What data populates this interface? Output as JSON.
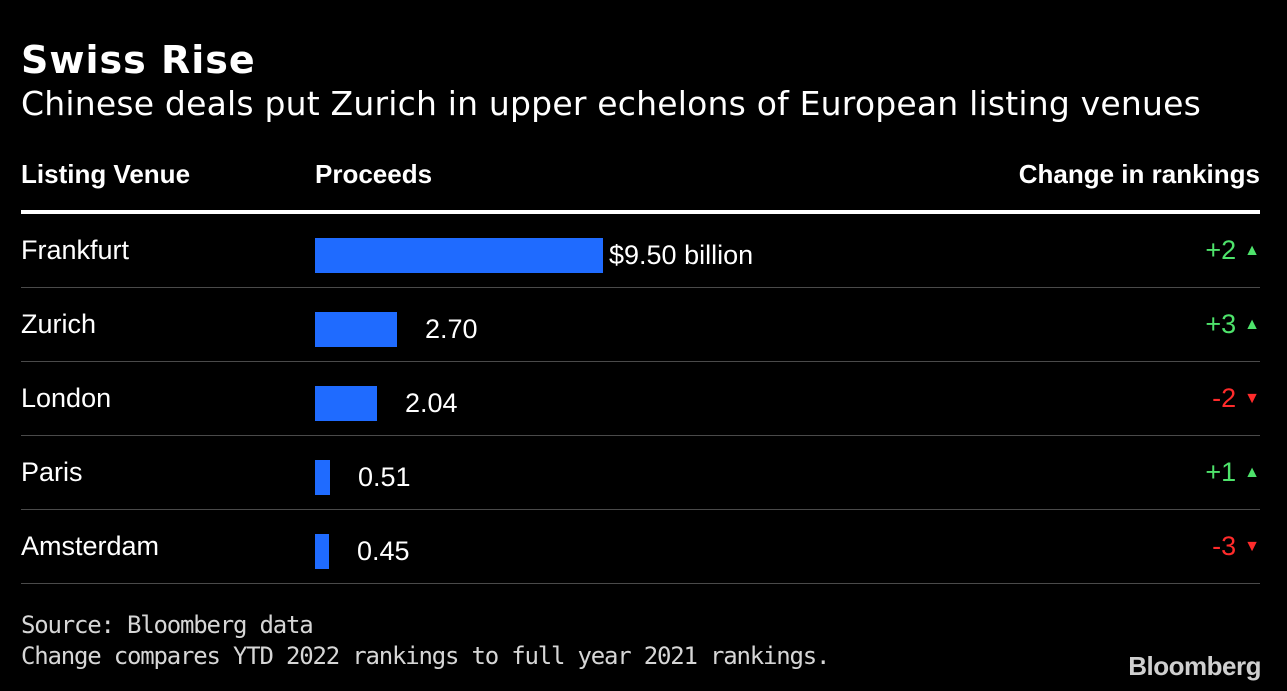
{
  "chart_data": {
    "type": "bar",
    "orientation": "horizontal",
    "title": "Swiss Rise",
    "subtitle": "Chinese deals put Zurich in upper echelons of European listing venues",
    "columns": [
      "Listing Venue",
      "Proceeds",
      "Change in rankings"
    ],
    "categories": [
      "Frankfurt",
      "Zurich",
      "London",
      "Paris",
      "Amsterdam"
    ],
    "values": [
      9.5,
      2.7,
      2.04,
      0.51,
      0.45
    ],
    "value_labels": [
      "$9.50 billion",
      "2.70",
      "2.04",
      "0.51",
      "0.45"
    ],
    "unit": "billion USD",
    "xlim": [
      0,
      9.5
    ],
    "ranking_changes": [
      {
        "text": "+2",
        "direction": "up"
      },
      {
        "text": "+3",
        "direction": "up"
      },
      {
        "text": "-2",
        "direction": "down"
      },
      {
        "text": "+1",
        "direction": "up"
      },
      {
        "text": "-3",
        "direction": "down"
      }
    ],
    "source": "Source: Bloomberg data",
    "note": "Change compares YTD 2022 rankings to full year 2021 rankings."
  },
  "icons": {
    "up": "▲",
    "down": "▼"
  },
  "colors": {
    "background": "#000000",
    "bar": "#1f6bff",
    "up": "#4ee36b",
    "down": "#ff2b2b"
  },
  "brand": "Bloomberg"
}
